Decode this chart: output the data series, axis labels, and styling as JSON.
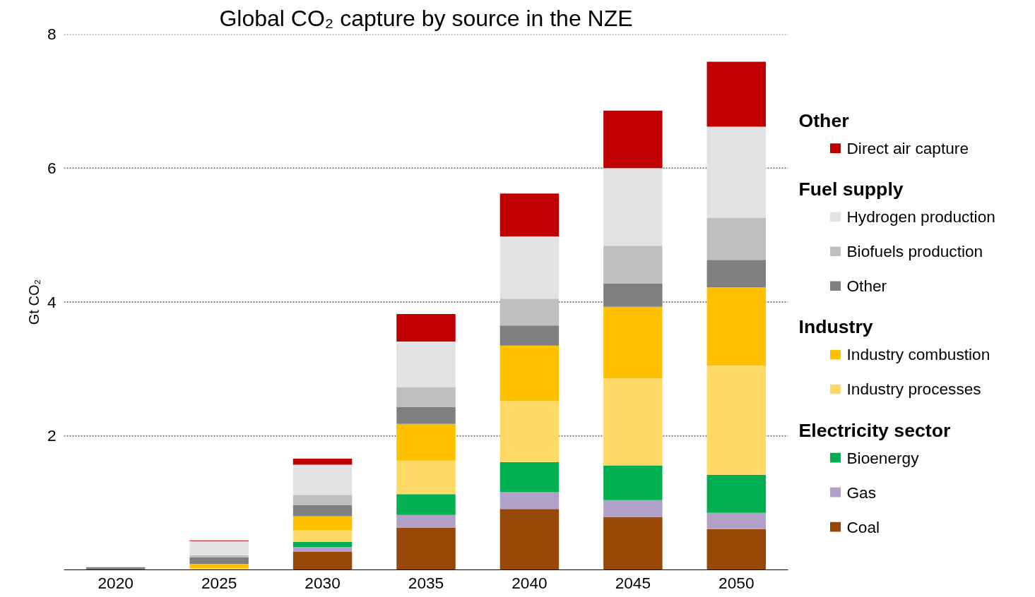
{
  "chart_data": {
    "type": "bar",
    "stacked": true,
    "title": "Global CO₂ capture by source in the NZE",
    "ylabel": "Gt CO₂",
    "categories": [
      "2020",
      "2025",
      "2030",
      "2035",
      "2040",
      "2045",
      "2050"
    ],
    "ylim": [
      0,
      8
    ],
    "yticks": [
      2,
      4,
      6,
      8
    ],
    "grid": "y",
    "legend": "right",
    "line_style": "dotted",
    "series": [
      {
        "name": "Coal",
        "color": "#974706",
        "values": [
          0,
          null,
          0.27,
          0.63,
          0.91,
          0.79,
          0.61
        ]
      },
      {
        "name": "Gas",
        "color": "#b1a0c7",
        "values": [
          0,
          0,
          0.07,
          0.19,
          0.25,
          0.25,
          0.24
        ]
      },
      {
        "name": "Bioenergy",
        "color": "#00b050",
        "values": [
          0,
          0,
          0.08,
          0.31,
          0.45,
          0.52,
          0.57
        ]
      },
      {
        "name": "Electricity sector",
        "values": [
          null,
          null,
          null,
          null,
          null,
          null,
          null
        ]
      },
      {
        "name": "Industry processes",
        "color": "#ffd966",
        "values": [
          0,
          0.02,
          0.17,
          0.5,
          0.91,
          1.3,
          1.63
        ]
      },
      {
        "name": "Industry combustion",
        "color": "#ffc000",
        "values": [
          0,
          0.07,
          0.21,
          0.55,
          0.83,
          1.07,
          1.17
        ]
      },
      {
        "name": "Industry",
        "values": [
          null,
          null,
          null,
          null,
          null,
          null,
          null
        ]
      },
      {
        "name": "Other",
        "color": "#7f7f7f",
        "values": [
          0.04,
          0.1,
          0.17,
          0.25,
          0.3,
          0.35,
          0.41
        ]
      },
      {
        "name": "Biofuels production",
        "color": "#bfbfbf",
        "values": [
          0,
          0.03,
          0.15,
          0.3,
          0.4,
          0.56,
          0.63
        ]
      },
      {
        "name": "Hydrogen production",
        "color": "#e3e3e3",
        "values": [
          0,
          0.21,
          0.45,
          0.68,
          0.93,
          1.16,
          1.36
        ]
      },
      {
        "name": "Fuel supply",
        "values": [
          null,
          null,
          null,
          null,
          null,
          null,
          null
        ]
      },
      {
        "name": "Direct air capture",
        "color": "#c00000",
        "values": [
          0,
          0.01,
          0.09,
          0.41,
          0.64,
          0.86,
          0.97
        ]
      },
      {
        "name": "Other",
        "values": [
          null,
          null,
          null,
          null,
          null,
          null,
          null
        ]
      }
    ]
  }
}
